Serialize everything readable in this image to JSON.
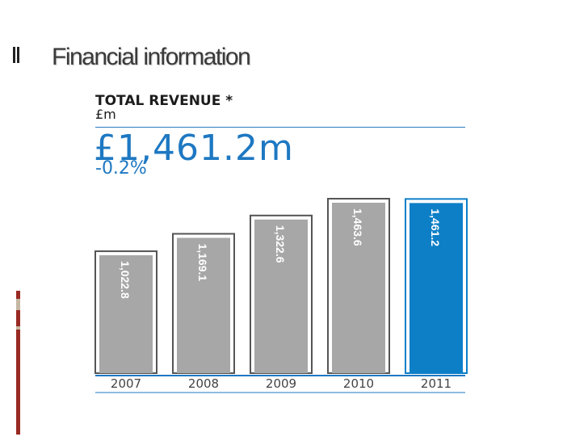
{
  "slide": {
    "title": "Financial information"
  },
  "colors": {
    "bar": "#a7a7a7",
    "bar_highlight": "#0c7fc7",
    "bar_outline": "#555555",
    "accent": "#1e78c2",
    "deco_red": "#9a2a24",
    "deco_tan": "#c5b7a2"
  },
  "chart_data": {
    "type": "bar",
    "title": "TOTAL REVENUE *",
    "unit_label": "£m",
    "headline_value": "£1,461.2m",
    "headline_change": "-0.2%",
    "categories": [
      "2007",
      "2008",
      "2009",
      "2010",
      "2011"
    ],
    "values": [
      1022.8,
      1169.1,
      1322.6,
      1463.6,
      1461.2
    ],
    "value_labels": [
      "1,022.8",
      "1,169.1",
      "1,322.6",
      "1,463.6",
      "1,461.2"
    ],
    "highlight_index": 4,
    "ylim": [
      0,
      1500
    ],
    "grid": false,
    "legend": "none"
  }
}
